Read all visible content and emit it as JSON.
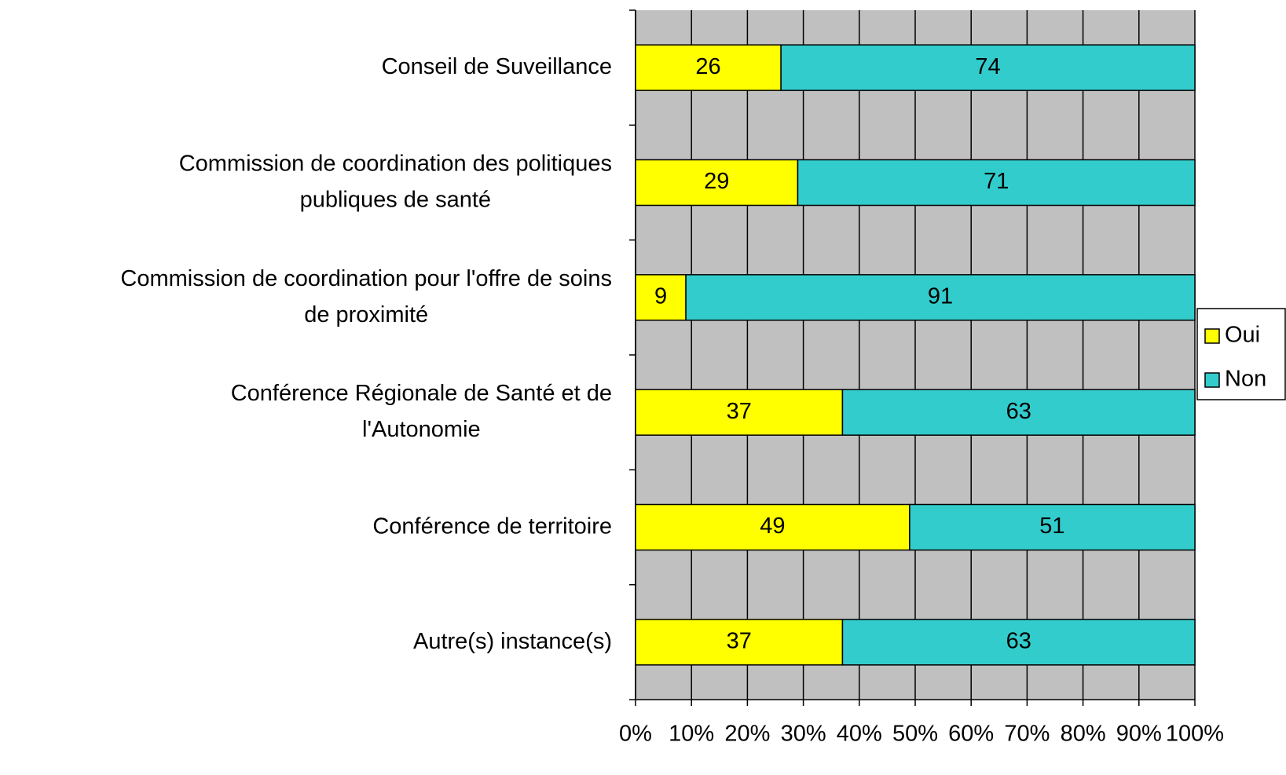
{
  "chart_data": {
    "type": "stacked_barh",
    "categories": [
      "Conseil de Suveillance",
      "Commission de coordination des politiques\npubliques de santé",
      "Commission de coordination pour l'offre de soins\nde proximité",
      "Conférence Régionale de Santé et de\nl'Autonomie",
      "Conférence de territoire",
      "Autre(s) instance(s)"
    ],
    "series": [
      {
        "name": "Oui",
        "color": "#ffff00",
        "values": [
          26,
          29,
          9,
          37,
          49,
          37
        ]
      },
      {
        "name": "Non",
        "color": "#33cccc",
        "values": [
          74,
          71,
          91,
          63,
          51,
          63
        ]
      }
    ],
    "xlim": [
      0,
      100
    ],
    "xticks": [
      {
        "value": 0,
        "label": "0%"
      },
      {
        "value": 10,
        "label": "10%"
      },
      {
        "value": 20,
        "label": "20%"
      },
      {
        "value": 30,
        "label": "30%"
      },
      {
        "value": 40,
        "label": "40%"
      },
      {
        "value": 50,
        "label": "50%"
      },
      {
        "value": 60,
        "label": "60%"
      },
      {
        "value": 70,
        "label": "70%"
      },
      {
        "value": 80,
        "label": "80%"
      },
      {
        "value": 90,
        "label": "90%"
      },
      {
        "value": 100,
        "label": "100%"
      }
    ],
    "grid": true,
    "legend": "right"
  }
}
